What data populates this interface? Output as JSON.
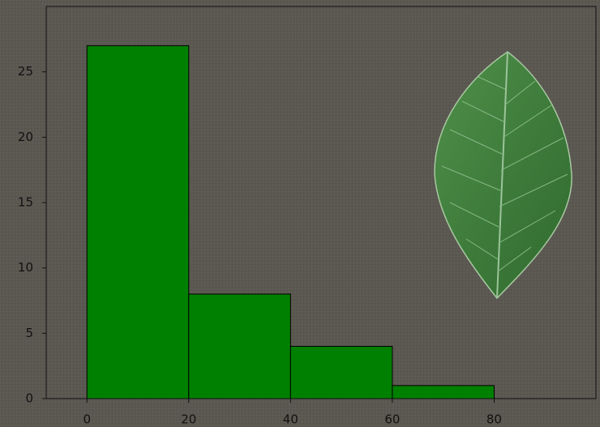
{
  "chart_data": {
    "type": "histogram",
    "bins": [
      0,
      20,
      40,
      60,
      80
    ],
    "values": [
      27,
      8,
      4,
      1
    ],
    "color": "#008000",
    "xlim": [
      -8,
      100
    ],
    "ylim": [
      0,
      30
    ],
    "xticks": [
      0,
      20,
      40,
      60,
      80
    ],
    "yticks": [
      0,
      5,
      10,
      15,
      20,
      25
    ]
  }
}
